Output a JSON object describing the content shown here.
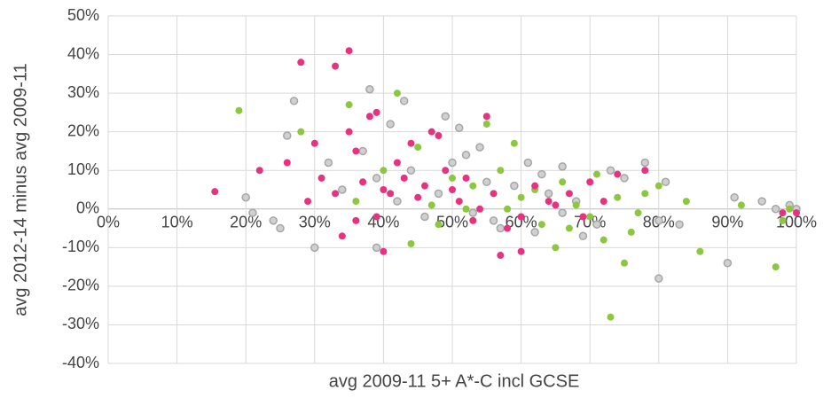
{
  "chart_data": {
    "type": "scatter",
    "x_label": "avg 2009-11 5+ A*-C incl GCSE",
    "y_label": "avg 2012-14 minus avg 2009-11",
    "xlim": [
      0,
      100
    ],
    "ylim": [
      -40,
      50
    ],
    "grid": true,
    "xticks": [
      {
        "value": 0,
        "label": "0%"
      },
      {
        "value": 10,
        "label": "10%"
      },
      {
        "value": 20,
        "label": "20%"
      },
      {
        "value": 30,
        "label": "30%"
      },
      {
        "value": 40,
        "label": "40%"
      },
      {
        "value": 50,
        "label": "50%"
      },
      {
        "value": 60,
        "label": "60%"
      },
      {
        "value": 70,
        "label": "70%"
      },
      {
        "value": 80,
        "label": "80%"
      },
      {
        "value": 90,
        "label": "90%"
      },
      {
        "value": 100,
        "label": "100%"
      }
    ],
    "yticks": [
      {
        "value": -40,
        "label": "-40%"
      },
      {
        "value": -30,
        "label": "-30%"
      },
      {
        "value": -20,
        "label": "-20%"
      },
      {
        "value": -10,
        "label": "-10%"
      },
      {
        "value": 0,
        "label": "0%"
      },
      {
        "value": 10,
        "label": "10%"
      },
      {
        "value": 20,
        "label": "20%"
      },
      {
        "value": 30,
        "label": "30%"
      },
      {
        "value": 40,
        "label": "40%"
      },
      {
        "value": 50,
        "label": "50%"
      }
    ],
    "series": [
      {
        "color": "#a6a6a6",
        "x": [
          20,
          21,
          24,
          25,
          27,
          30,
          38,
          39,
          41,
          43,
          49,
          51,
          54,
          57,
          61,
          63,
          66,
          69,
          73,
          75,
          78,
          80,
          81,
          83,
          90,
          91,
          95,
          97,
          99,
          100,
          26,
          32,
          34,
          37,
          39,
          42,
          44,
          46,
          48,
          50,
          52,
          53,
          55,
          56,
          59,
          62,
          64,
          66,
          68,
          71,
          80
        ],
        "values": [
          3,
          -1,
          -3,
          -5,
          28,
          -10,
          31,
          -10,
          22,
          28,
          24,
          21,
          16,
          -5,
          12,
          9,
          11,
          -7,
          10,
          8,
          12,
          -18,
          7,
          -4,
          -14,
          3,
          2,
          0,
          1,
          0,
          19,
          12,
          5,
          15,
          8,
          2,
          10,
          -2,
          4,
          12,
          14,
          -1,
          7,
          -3,
          6,
          -6,
          4,
          -1,
          2,
          -4,
          -3
        ]
      },
      {
        "color": "#8dc63f",
        "x": [
          19,
          28,
          35,
          42,
          45,
          55,
          59,
          73,
          75,
          80,
          84,
          86,
          92,
          97,
          98,
          99,
          50,
          52,
          57,
          60,
          62,
          63,
          65,
          66,
          67,
          68,
          70,
          71,
          72,
          74,
          76,
          77,
          78,
          44,
          48,
          36,
          40,
          47,
          53,
          58
        ],
        "values": [
          25.5,
          20,
          27,
          30,
          16,
          22,
          17,
          -28,
          -14,
          6,
          2,
          -11,
          1,
          -15,
          -3,
          0,
          8,
          0,
          10,
          3,
          5,
          -4,
          -10,
          7,
          -5,
          1,
          -2,
          9,
          -8,
          3,
          -6,
          -1,
          4,
          -9,
          -4,
          2,
          10,
          1,
          6,
          0
        ]
      },
      {
        "color": "#e8327f",
        "x": [
          15.5,
          28,
          33,
          35,
          22,
          26,
          34,
          40,
          55,
          57,
          60,
          74,
          78,
          98,
          100,
          29,
          30,
          31,
          35,
          36,
          38,
          39,
          41,
          42,
          43,
          44,
          45,
          46,
          47,
          48,
          49,
          50,
          51,
          52,
          53,
          54,
          56,
          58,
          60,
          62,
          64,
          65,
          67,
          69,
          70,
          72,
          37,
          39,
          40,
          33,
          36
        ],
        "values": [
          4.5,
          38,
          37,
          41,
          10,
          12,
          -7,
          -11,
          24,
          -12,
          -11,
          9,
          10,
          -1,
          -1,
          2,
          17,
          8,
          20,
          15,
          24,
          25,
          4,
          12,
          8,
          17,
          3,
          6,
          20,
          19,
          10,
          5,
          2,
          8,
          -3,
          0,
          4,
          -5,
          -2,
          6,
          2,
          1,
          4,
          -2,
          7,
          2,
          7,
          -2,
          5,
          4,
          -3
        ]
      }
    ]
  }
}
